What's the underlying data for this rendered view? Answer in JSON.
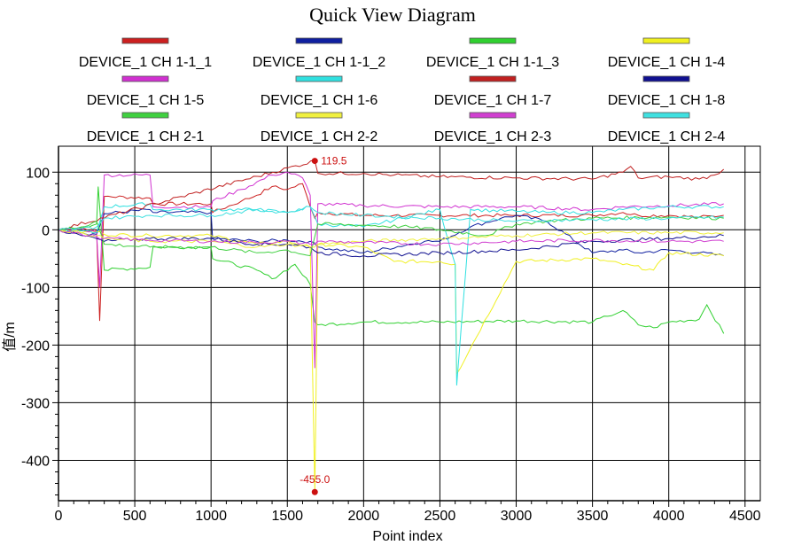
{
  "chart_data": {
    "type": "line",
    "title": "Quick View Diagram",
    "xlabel": "Point index",
    "ylabel": "值/m",
    "xlim": [
      0,
      4600
    ],
    "ylim": [
      -470,
      145
    ],
    "xticks": [
      0,
      500,
      1000,
      1500,
      2000,
      2500,
      3000,
      3500,
      4000,
      4500
    ],
    "yticks": [
      100,
      0,
      -100,
      -200,
      -300,
      -400
    ],
    "grid": true,
    "legend_position": "top",
    "series": [
      {
        "name": "DEVICE_1 CH 1-1_1",
        "color": "#cc2020",
        "x": [
          0,
          150,
          250,
          270,
          300,
          600,
          620,
          1000,
          1010,
          1200,
          1300,
          1400,
          1500,
          1600,
          1650,
          1680,
          1700,
          2000,
          2200,
          2500,
          3000,
          3500,
          3700,
          3800,
          4000,
          4200,
          4360
        ],
        "y": [
          0,
          3,
          -2,
          -158,
          58,
          55,
          45,
          45,
          30,
          50,
          60,
          75,
          70,
          80,
          40,
          20,
          30,
          25,
          25,
          25,
          25,
          25,
          30,
          25,
          25,
          22,
          25
        ]
      },
      {
        "name": "DEVICE_1 CH 1-1_2",
        "color": "#1020a0",
        "x": [
          0,
          150,
          250,
          300,
          600,
          620,
          1000,
          1010,
          1300,
          1500,
          1650,
          1700,
          2000,
          2400,
          2500,
          2700,
          2900,
          3000,
          3200,
          3500,
          3700,
          3800,
          4000,
          4200,
          4360
        ],
        "y": [
          0,
          -5,
          -8,
          28,
          35,
          30,
          30,
          -15,
          -20,
          -18,
          -20,
          -30,
          -40,
          -20,
          -20,
          5,
          20,
          25,
          15,
          -40,
          -35,
          -40,
          -35,
          -40,
          -45
        ]
      },
      {
        "name": "DEVICE_1 CH 1-1_3",
        "color": "#30d030",
        "x": [
          0,
          150,
          250,
          260,
          300,
          600,
          620,
          1000,
          1010,
          1300,
          1400,
          1550,
          1650,
          1680,
          1700,
          2000,
          2500,
          3000,
          3500,
          3600,
          3700,
          3800,
          3900,
          4000,
          4200,
          4250,
          4360
        ],
        "y": [
          0,
          5,
          10,
          75,
          -70,
          -65,
          -30,
          -30,
          -50,
          -70,
          -85,
          -60,
          -95,
          -160,
          -165,
          -160,
          -160,
          -158,
          -160,
          -150,
          -140,
          -165,
          -170,
          -160,
          -155,
          -130,
          -180
        ]
      },
      {
        "name": "DEVICE_1 CH 1-4",
        "color": "#f0f020",
        "x": [
          0,
          150,
          250,
          300,
          600,
          1000,
          1300,
          1500,
          1650,
          1680,
          1700,
          2000,
          2200,
          2500,
          2600,
          2610,
          3000,
          3500,
          3900,
          4000,
          4360
        ],
        "y": [
          0,
          -5,
          -3,
          -8,
          -10,
          -10,
          -25,
          -20,
          -30,
          -455,
          -25,
          -30,
          -55,
          -55,
          -60,
          -250,
          -55,
          -50,
          -70,
          -40,
          -45
        ]
      },
      {
        "name": "DEVICE_1 CH 1-5",
        "color": "#d030d0",
        "x": [
          0,
          150,
          250,
          270,
          300,
          600,
          620,
          1000,
          1010,
          1200,
          1400,
          1500,
          1600,
          1650,
          1680,
          1700,
          2000,
          2500,
          3000,
          3500,
          3700,
          4000,
          4360
        ],
        "y": [
          0,
          2,
          -5,
          -100,
          95,
          95,
          40,
          40,
          50,
          70,
          95,
          100,
          90,
          60,
          -240,
          45,
          42,
          40,
          40,
          35,
          40,
          42,
          45
        ]
      },
      {
        "name": "DEVICE_1 CH 1-6",
        "color": "#30e0e0",
        "x": [
          0,
          150,
          250,
          300,
          600,
          620,
          1000,
          1300,
          1500,
          1650,
          1700,
          2000,
          2500,
          2600,
          2610,
          2700,
          3000,
          3200,
          3500,
          3700,
          4000,
          4360
        ],
        "y": [
          0,
          -2,
          -5,
          40,
          45,
          35,
          35,
          35,
          30,
          40,
          10,
          5,
          35,
          -60,
          -270,
          35,
          32,
          30,
          30,
          35,
          40,
          40
        ]
      },
      {
        "name": "DEVICE_1 CH 1-7",
        "color": "#c02020",
        "x": [
          0,
          1680,
          1700,
          2000,
          2200,
          2500,
          3000,
          3500,
          3700,
          3750,
          3800,
          4000,
          4200,
          4300,
          4360
        ],
        "y": [
          0,
          119.5,
          98,
          98,
          95,
          92,
          90,
          88,
          100,
          110,
          90,
          92,
          88,
          95,
          105
        ]
      },
      {
        "name": "DEVICE_1 CH 1-8",
        "color": "#101090",
        "x": [
          0,
          150,
          250,
          300,
          600,
          1000,
          1300,
          1500,
          1650,
          1700,
          2000,
          2500,
          3000,
          3500,
          4000,
          4360
        ],
        "y": [
          0,
          -10,
          -15,
          -20,
          -15,
          -15,
          -25,
          -25,
          -30,
          -40,
          -45,
          -40,
          -35,
          -20,
          -15,
          -10
        ]
      },
      {
        "name": "DEVICE_1 CH 2-1",
        "color": "#40d040",
        "x": [
          0,
          150,
          250,
          300,
          600,
          1000,
          1300,
          1500,
          1650,
          1700,
          2000,
          2300,
          2500,
          2800,
          3000,
          3200,
          3500,
          4000,
          4360
        ],
        "y": [
          0,
          5,
          15,
          -25,
          -30,
          -30,
          -40,
          -35,
          -45,
          10,
          8,
          5,
          0,
          -10,
          10,
          15,
          20,
          22,
          20
        ]
      },
      {
        "name": "DEVICE_1 CH 2-2",
        "color": "#f0f040",
        "x": [
          0,
          150,
          250,
          300,
          600,
          1000,
          1300,
          1500,
          1650,
          1700,
          2000,
          2500,
          3000,
          3500,
          4000,
          4360
        ],
        "y": [
          0,
          -5,
          -10,
          -15,
          -20,
          -20,
          -30,
          -25,
          -30,
          -25,
          -20,
          -15,
          -10,
          -5,
          -5,
          -5
        ]
      },
      {
        "name": "DEVICE_1 CH 2-3",
        "color": "#d040d0",
        "x": [
          0,
          150,
          250,
          300,
          600,
          1000,
          1300,
          1500,
          1650,
          1700,
          2000,
          2500,
          3000,
          3500,
          4000,
          4360
        ],
        "y": [
          0,
          -8,
          -12,
          -15,
          -18,
          -20,
          -22,
          -20,
          -25,
          -20,
          -22,
          -25,
          -20,
          -18,
          -20,
          -20
        ]
      },
      {
        "name": "DEVICE_1 CH 2-4",
        "color": "#40e0e0",
        "x": [
          0,
          150,
          250,
          300,
          600,
          1000,
          1300,
          1500,
          1650,
          1700,
          2000,
          2500,
          3000,
          3500,
          4000,
          4360
        ],
        "y": [
          0,
          2,
          5,
          20,
          25,
          25,
          35,
          30,
          40,
          30,
          25,
          20,
          15,
          18,
          20,
          22
        ]
      }
    ],
    "annotations": [
      {
        "label": "119.5",
        "x": 1680,
        "y": 119.5,
        "position": "right"
      },
      {
        "label": "-455.0",
        "x": 1680,
        "y": -455,
        "position": "above"
      }
    ]
  }
}
